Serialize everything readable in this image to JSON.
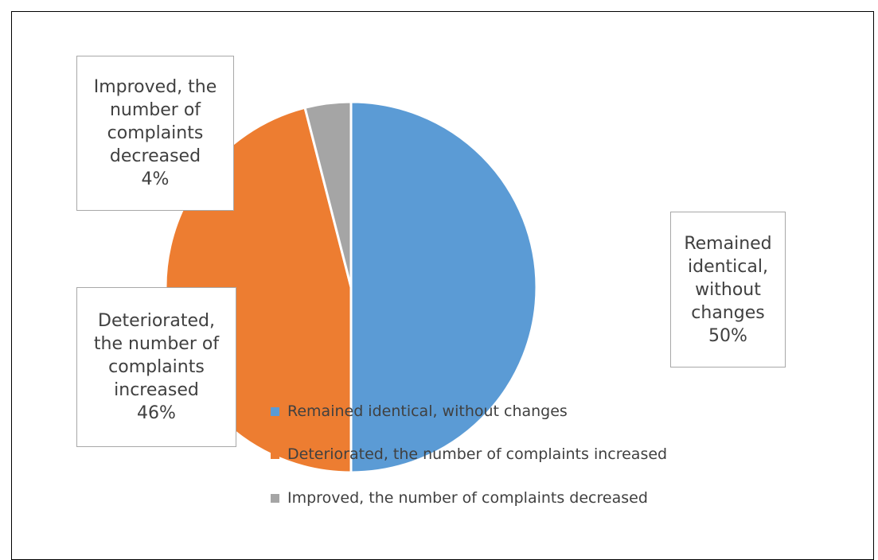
{
  "chart_data": {
    "type": "pie",
    "title": "",
    "slices": [
      {
        "label": "Remained identical, without changes",
        "value": 50,
        "value_label": "50%",
        "color": "#5b9bd5",
        "callout_lines": [
          "Remained",
          "identical,",
          "without",
          "changes",
          "50%"
        ]
      },
      {
        "label": "Deteriorated, the number of complaints increased",
        "value": 46,
        "value_label": "46%",
        "color": "#ed7d31",
        "callout_lines": [
          "Deteriorated,",
          "the number of",
          "complaints",
          "increased",
          "46%"
        ]
      },
      {
        "label": "Improved, the number of complaints decreased",
        "value": 4,
        "value_label": "4%",
        "color": "#a5a5a5",
        "callout_lines": [
          "Improved, the",
          "number of",
          "complaints",
          "decreased",
          "4%"
        ]
      }
    ],
    "legend": {
      "position": "bottom-right",
      "entries": [
        "Remained identical, without changes",
        "Deteriorated, the number of complaints increased",
        "Improved, the number of complaints decreased"
      ]
    }
  }
}
